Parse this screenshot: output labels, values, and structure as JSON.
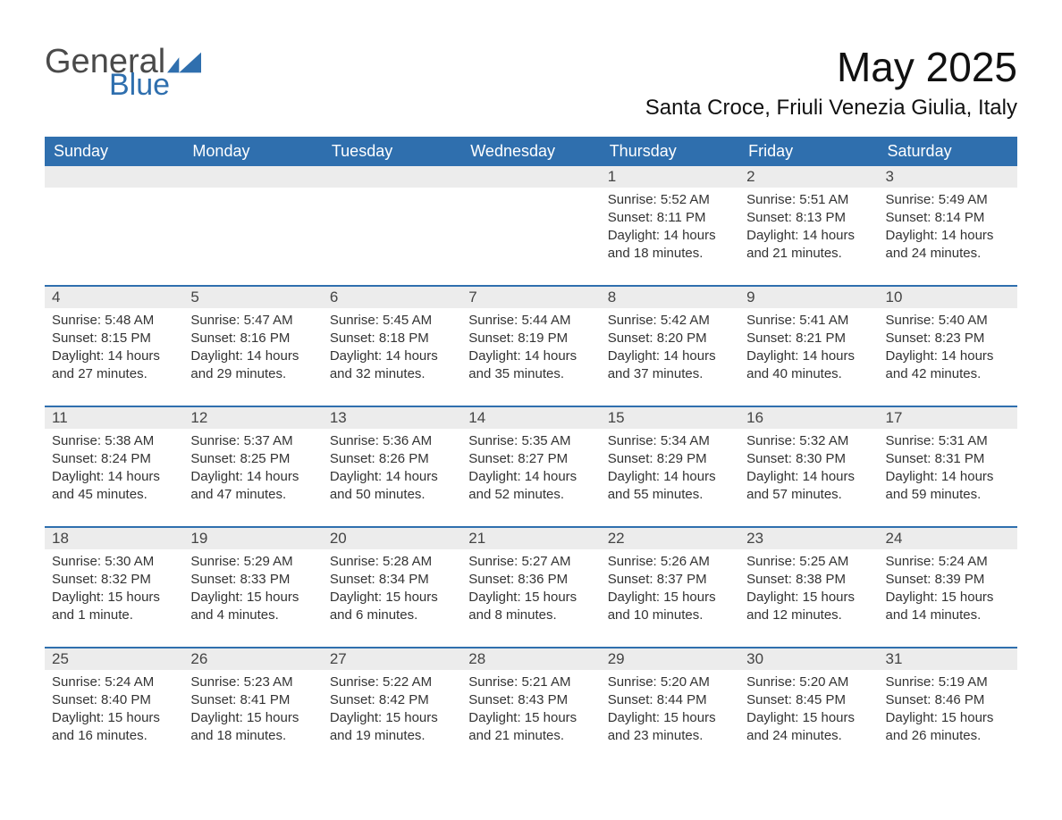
{
  "logo": {
    "word1": "General",
    "word2": "Blue",
    "shape_color": "#2f6fae",
    "text1_color": "#4a4a4a",
    "text2_color": "#2f6fae"
  },
  "title": "May 2025",
  "location": "Santa Croce, Friuli Venezia Giulia, Italy",
  "colors": {
    "header_bg": "#2f6fae",
    "header_text": "#ffffff",
    "daynum_bg": "#ececec",
    "daynum_text": "#444444",
    "detail_text": "#333333",
    "separator": "#2f6fae",
    "page_bg": "#ffffff"
  },
  "fonts": {
    "title_size_pt": 34,
    "location_size_pt": 18,
    "dow_size_pt": 14,
    "daynum_size_pt": 13,
    "detail_size_pt": 11
  },
  "days_of_week": [
    "Sunday",
    "Monday",
    "Tuesday",
    "Wednesday",
    "Thursday",
    "Friday",
    "Saturday"
  ],
  "weeks": [
    [
      null,
      null,
      null,
      null,
      {
        "n": "1",
        "sr": "Sunrise: 5:52 AM",
        "ss": "Sunset: 8:11 PM",
        "d1": "Daylight: 14 hours",
        "d2": "and 18 minutes."
      },
      {
        "n": "2",
        "sr": "Sunrise: 5:51 AM",
        "ss": "Sunset: 8:13 PM",
        "d1": "Daylight: 14 hours",
        "d2": "and 21 minutes."
      },
      {
        "n": "3",
        "sr": "Sunrise: 5:49 AM",
        "ss": "Sunset: 8:14 PM",
        "d1": "Daylight: 14 hours",
        "d2": "and 24 minutes."
      }
    ],
    [
      {
        "n": "4",
        "sr": "Sunrise: 5:48 AM",
        "ss": "Sunset: 8:15 PM",
        "d1": "Daylight: 14 hours",
        "d2": "and 27 minutes."
      },
      {
        "n": "5",
        "sr": "Sunrise: 5:47 AM",
        "ss": "Sunset: 8:16 PM",
        "d1": "Daylight: 14 hours",
        "d2": "and 29 minutes."
      },
      {
        "n": "6",
        "sr": "Sunrise: 5:45 AM",
        "ss": "Sunset: 8:18 PM",
        "d1": "Daylight: 14 hours",
        "d2": "and 32 minutes."
      },
      {
        "n": "7",
        "sr": "Sunrise: 5:44 AM",
        "ss": "Sunset: 8:19 PM",
        "d1": "Daylight: 14 hours",
        "d2": "and 35 minutes."
      },
      {
        "n": "8",
        "sr": "Sunrise: 5:42 AM",
        "ss": "Sunset: 8:20 PM",
        "d1": "Daylight: 14 hours",
        "d2": "and 37 minutes."
      },
      {
        "n": "9",
        "sr": "Sunrise: 5:41 AM",
        "ss": "Sunset: 8:21 PM",
        "d1": "Daylight: 14 hours",
        "d2": "and 40 minutes."
      },
      {
        "n": "10",
        "sr": "Sunrise: 5:40 AM",
        "ss": "Sunset: 8:23 PM",
        "d1": "Daylight: 14 hours",
        "d2": "and 42 minutes."
      }
    ],
    [
      {
        "n": "11",
        "sr": "Sunrise: 5:38 AM",
        "ss": "Sunset: 8:24 PM",
        "d1": "Daylight: 14 hours",
        "d2": "and 45 minutes."
      },
      {
        "n": "12",
        "sr": "Sunrise: 5:37 AM",
        "ss": "Sunset: 8:25 PM",
        "d1": "Daylight: 14 hours",
        "d2": "and 47 minutes."
      },
      {
        "n": "13",
        "sr": "Sunrise: 5:36 AM",
        "ss": "Sunset: 8:26 PM",
        "d1": "Daylight: 14 hours",
        "d2": "and 50 minutes."
      },
      {
        "n": "14",
        "sr": "Sunrise: 5:35 AM",
        "ss": "Sunset: 8:27 PM",
        "d1": "Daylight: 14 hours",
        "d2": "and 52 minutes."
      },
      {
        "n": "15",
        "sr": "Sunrise: 5:34 AM",
        "ss": "Sunset: 8:29 PM",
        "d1": "Daylight: 14 hours",
        "d2": "and 55 minutes."
      },
      {
        "n": "16",
        "sr": "Sunrise: 5:32 AM",
        "ss": "Sunset: 8:30 PM",
        "d1": "Daylight: 14 hours",
        "d2": "and 57 minutes."
      },
      {
        "n": "17",
        "sr": "Sunrise: 5:31 AM",
        "ss": "Sunset: 8:31 PM",
        "d1": "Daylight: 14 hours",
        "d2": "and 59 minutes."
      }
    ],
    [
      {
        "n": "18",
        "sr": "Sunrise: 5:30 AM",
        "ss": "Sunset: 8:32 PM",
        "d1": "Daylight: 15 hours",
        "d2": "and 1 minute."
      },
      {
        "n": "19",
        "sr": "Sunrise: 5:29 AM",
        "ss": "Sunset: 8:33 PM",
        "d1": "Daylight: 15 hours",
        "d2": "and 4 minutes."
      },
      {
        "n": "20",
        "sr": "Sunrise: 5:28 AM",
        "ss": "Sunset: 8:34 PM",
        "d1": "Daylight: 15 hours",
        "d2": "and 6 minutes."
      },
      {
        "n": "21",
        "sr": "Sunrise: 5:27 AM",
        "ss": "Sunset: 8:36 PM",
        "d1": "Daylight: 15 hours",
        "d2": "and 8 minutes."
      },
      {
        "n": "22",
        "sr": "Sunrise: 5:26 AM",
        "ss": "Sunset: 8:37 PM",
        "d1": "Daylight: 15 hours",
        "d2": "and 10 minutes."
      },
      {
        "n": "23",
        "sr": "Sunrise: 5:25 AM",
        "ss": "Sunset: 8:38 PM",
        "d1": "Daylight: 15 hours",
        "d2": "and 12 minutes."
      },
      {
        "n": "24",
        "sr": "Sunrise: 5:24 AM",
        "ss": "Sunset: 8:39 PM",
        "d1": "Daylight: 15 hours",
        "d2": "and 14 minutes."
      }
    ],
    [
      {
        "n": "25",
        "sr": "Sunrise: 5:24 AM",
        "ss": "Sunset: 8:40 PM",
        "d1": "Daylight: 15 hours",
        "d2": "and 16 minutes."
      },
      {
        "n": "26",
        "sr": "Sunrise: 5:23 AM",
        "ss": "Sunset: 8:41 PM",
        "d1": "Daylight: 15 hours",
        "d2": "and 18 minutes."
      },
      {
        "n": "27",
        "sr": "Sunrise: 5:22 AM",
        "ss": "Sunset: 8:42 PM",
        "d1": "Daylight: 15 hours",
        "d2": "and 19 minutes."
      },
      {
        "n": "28",
        "sr": "Sunrise: 5:21 AM",
        "ss": "Sunset: 8:43 PM",
        "d1": "Daylight: 15 hours",
        "d2": "and 21 minutes."
      },
      {
        "n": "29",
        "sr": "Sunrise: 5:20 AM",
        "ss": "Sunset: 8:44 PM",
        "d1": "Daylight: 15 hours",
        "d2": "and 23 minutes."
      },
      {
        "n": "30",
        "sr": "Sunrise: 5:20 AM",
        "ss": "Sunset: 8:45 PM",
        "d1": "Daylight: 15 hours",
        "d2": "and 24 minutes."
      },
      {
        "n": "31",
        "sr": "Sunrise: 5:19 AM",
        "ss": "Sunset: 8:46 PM",
        "d1": "Daylight: 15 hours",
        "d2": "and 26 minutes."
      }
    ]
  ]
}
